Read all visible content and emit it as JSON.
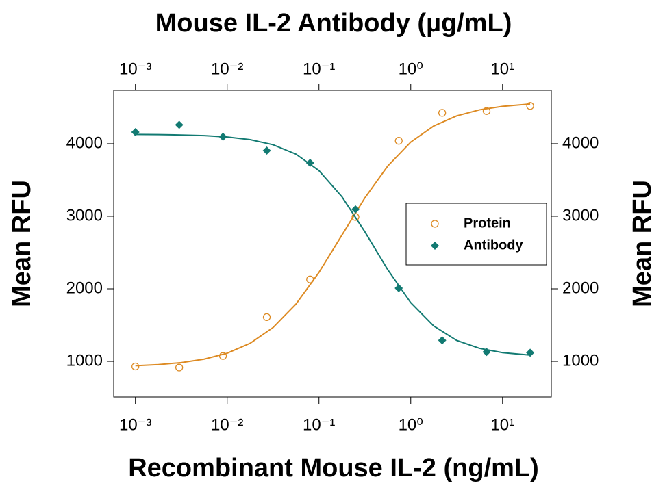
{
  "chart_data": {
    "type": "scatter",
    "title": "Mouse IL-2 Antibody (µg/mL)",
    "xlabel": "Recombinant Mouse IL-2 (ng/mL)",
    "ylabel": "Mean RFU",
    "y2label": "Mean RFU",
    "xscale": "log",
    "xlim": [
      0.00058,
      34
    ],
    "xticks": [
      {
        "value": 0.001,
        "label": "10⁻³"
      },
      {
        "value": 0.01,
        "label": "10⁻²"
      },
      {
        "value": 0.1,
        "label": "10⁻¹"
      },
      {
        "value": 1,
        "label": "10⁰"
      },
      {
        "value": 10,
        "label": "10¹"
      }
    ],
    "x2lim": [
      0.00058,
      34
    ],
    "x2ticks": [
      {
        "value": 0.001,
        "label": "10⁻³"
      },
      {
        "value": 0.01,
        "label": "10⁻²"
      },
      {
        "value": 0.1,
        "label": "10⁻¹"
      },
      {
        "value": 1,
        "label": "10⁰"
      },
      {
        "value": 10,
        "label": "10¹"
      }
    ],
    "ylim": [
      510,
      4735
    ],
    "yticks": [
      1000,
      2000,
      3000,
      4000
    ],
    "y2lim": [
      510,
      4735
    ],
    "y2ticks": [
      1000,
      2000,
      3000,
      4000
    ],
    "legend": "right",
    "series": [
      {
        "name": "Protein",
        "color": "#dd8a22",
        "marker": "open-circle",
        "x": [
          0.001,
          0.003,
          0.009,
          0.027,
          0.08,
          0.25,
          0.74,
          2.2,
          6.7,
          20
        ],
        "values": [
          930,
          915,
          1075,
          1610,
          2130,
          2990,
          4040,
          4425,
          4450,
          4520
        ]
      },
      {
        "name": "Antibody",
        "color": "#127a72",
        "marker": "diamond",
        "axis": "y2",
        "x": [
          0.001,
          0.003,
          0.009,
          0.027,
          0.08,
          0.25,
          0.74,
          2.2,
          6.7,
          20
        ],
        "values": [
          4160,
          4260,
          4095,
          3905,
          3735,
          3095,
          2010,
          1290,
          1130,
          1120
        ]
      }
    ],
    "curves": [
      {
        "color": "#dd8a22",
        "x": [
          0.001,
          0.00178,
          0.00316,
          0.00562,
          0.01,
          0.0178,
          0.0316,
          0.0562,
          0.1,
          0.178,
          0.316,
          0.562,
          1,
          1.78,
          3.16,
          5.62,
          10,
          20
        ],
        "values": [
          940,
          956,
          983,
          1031,
          1113,
          1250,
          1467,
          1791,
          2227,
          2741,
          3253,
          3693,
          4022,
          4244,
          4383,
          4467,
          4515,
          4547
        ]
      },
      {
        "color": "#127a72",
        "x": [
          0.001,
          0.00178,
          0.00316,
          0.00562,
          0.01,
          0.0178,
          0.0316,
          0.0562,
          0.1,
          0.178,
          0.316,
          0.562,
          1,
          1.78,
          3.16,
          5.62,
          10,
          20
        ],
        "values": [
          4128,
          4125,
          4120,
          4111,
          4093,
          4056,
          3986,
          3856,
          3629,
          3269,
          2787,
          2263,
          1809,
          1488,
          1290,
          1180,
          1121,
          1087
        ]
      }
    ]
  }
}
